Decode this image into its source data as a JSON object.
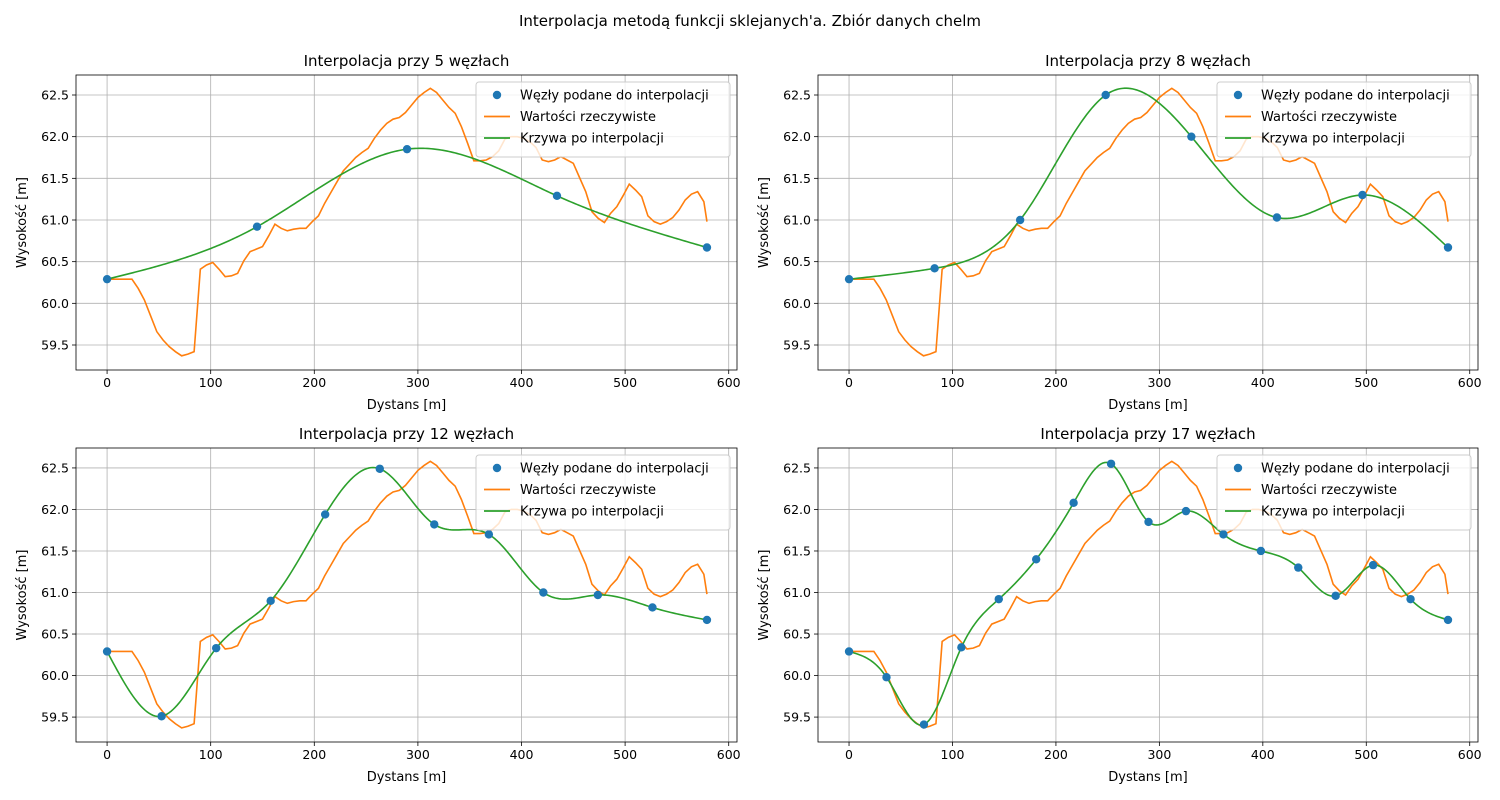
{
  "suptitle": "Interpolacja metodą funkcji sklejanych'a. Zbiór danych chelm",
  "colors": {
    "nodes": "#1f77b4",
    "actual": "#ff7f0e",
    "interp": "#2ca02c",
    "grid": "#b0b0b0"
  },
  "legend": {
    "nodes_label": "Węzły podane do interpolacji",
    "actual_label": "Wartości rzeczywiste",
    "interp_label": "Krzywa po interpolacji",
    "placement": "top-right"
  },
  "actual": {
    "x": [
      0,
      6,
      12,
      18,
      24,
      30,
      36,
      42,
      48,
      54,
      60,
      66,
      72,
      78,
      84,
      90,
      96,
      102,
      108,
      114,
      120,
      126,
      132,
      138,
      144,
      150,
      156,
      162,
      168,
      174,
      180,
      186,
      192,
      198,
      204,
      210,
      216,
      222,
      228,
      234,
      240,
      246,
      252,
      258,
      264,
      270,
      276,
      282,
      288,
      294,
      300,
      306,
      312,
      318,
      324,
      330,
      336,
      342,
      348,
      354,
      360,
      366,
      372,
      378,
      384,
      390,
      396,
      402,
      408,
      414,
      420,
      426,
      432,
      438,
      444,
      450,
      456,
      462,
      468,
      474,
      480,
      486,
      492,
      498,
      504,
      510,
      516,
      522,
      528,
      534,
      540,
      546,
      552,
      558,
      564,
      570,
      576,
      579
    ],
    "y": [
      60.29,
      60.29,
      60.29,
      60.29,
      60.29,
      60.18,
      60.04,
      59.85,
      59.66,
      59.56,
      59.48,
      59.42,
      59.37,
      59.39,
      59.42,
      60.41,
      60.46,
      60.49,
      60.41,
      60.32,
      60.33,
      60.36,
      60.51,
      60.62,
      60.65,
      60.68,
      60.81,
      60.95,
      60.9,
      60.87,
      60.89,
      60.9,
      60.9,
      60.98,
      61.05,
      61.2,
      61.33,
      61.46,
      61.59,
      61.67,
      61.75,
      61.81,
      61.86,
      61.98,
      62.08,
      62.16,
      62.21,
      62.23,
      62.29,
      62.38,
      62.47,
      62.53,
      62.58,
      62.53,
      62.44,
      62.35,
      62.28,
      62.12,
      61.92,
      61.71,
      61.71,
      61.72,
      61.76,
      61.83,
      61.97,
      62.0,
      62.0,
      61.98,
      61.94,
      61.87,
      61.72,
      61.7,
      61.72,
      61.76,
      61.72,
      61.68,
      61.51,
      61.34,
      61.1,
      61.02,
      60.97,
      61.08,
      61.16,
      61.29,
      61.43,
      61.36,
      61.28,
      61.05,
      60.98,
      60.95,
      60.98,
      61.03,
      61.12,
      61.24,
      61.31,
      61.34,
      61.22,
      60.98
    ],
    "note": "approximate read-off"
  },
  "panels": [
    {
      "title": "Interpolacja przy 5 węzłach",
      "xlabel": "Dystans [m]",
      "ylabel": "Wysokość [m]",
      "xlim": [
        -30,
        608
      ],
      "ylim": [
        59.2,
        62.74
      ],
      "xticks": [
        "0",
        "100",
        "200",
        "300",
        "400",
        "500",
        "600"
      ],
      "yticks": [
        "59.5",
        "60.0",
        "60.5",
        "61.0",
        "61.5",
        "62.0",
        "62.5"
      ],
      "nodes": {
        "x": [
          0,
          144.75,
          289.5,
          434.25,
          579
        ],
        "y": [
          60.29,
          60.92,
          61.85,
          61.29,
          60.67
        ]
      }
    },
    {
      "title": "Interpolacja przy 8 węzłach",
      "xlabel": "Dystans [m]",
      "ylabel": "Wysokość [m]",
      "xlim": [
        -30,
        608
      ],
      "ylim": [
        59.2,
        62.74
      ],
      "xticks": [
        "0",
        "100",
        "200",
        "300",
        "400",
        "500",
        "600"
      ],
      "yticks": [
        "59.5",
        "60.0",
        "60.5",
        "61.0",
        "61.5",
        "62.0",
        "62.5"
      ],
      "nodes": {
        "x": [
          0,
          82.7,
          165.4,
          248.1,
          330.9,
          413.6,
          496.3,
          579
        ],
        "y": [
          60.29,
          60.42,
          61.0,
          62.5,
          62.0,
          61.03,
          61.3,
          60.67
        ]
      }
    },
    {
      "title": "Interpolacja przy 12 węzłach",
      "xlabel": "Dystans [m]",
      "ylabel": "Wysokość [m]",
      "xlim": [
        -30,
        608
      ],
      "ylim": [
        59.2,
        62.74
      ],
      "xticks": [
        "0",
        "100",
        "200",
        "300",
        "400",
        "500",
        "600"
      ],
      "yticks": [
        "59.5",
        "60.0",
        "60.5",
        "61.0",
        "61.5",
        "62.0",
        "62.5"
      ],
      "nodes": {
        "x": [
          0,
          52.6,
          105.3,
          157.9,
          210.5,
          263.2,
          315.8,
          368.5,
          421.1,
          473.7,
          526.4,
          579
        ],
        "y": [
          60.29,
          59.51,
          60.33,
          60.9,
          61.94,
          62.49,
          61.82,
          61.7,
          61.0,
          60.97,
          60.82,
          60.67
        ]
      }
    },
    {
      "title": "Interpolacja przy 17 węzłach",
      "xlabel": "Dystans [m]",
      "ylabel": "Wysokość [m]",
      "xlim": [
        -30,
        608
      ],
      "ylim": [
        59.2,
        62.74
      ],
      "xticks": [
        "0",
        "100",
        "200",
        "300",
        "400",
        "500",
        "600"
      ],
      "yticks": [
        "59.5",
        "60.0",
        "60.5",
        "61.0",
        "61.5",
        "62.0",
        "62.5"
      ],
      "nodes": {
        "x": [
          0,
          36.2,
          72.4,
          108.6,
          144.75,
          180.9,
          217.1,
          253.3,
          289.5,
          325.7,
          361.9,
          398.1,
          434.25,
          470.4,
          506.6,
          542.8,
          579
        ],
        "y": [
          60.29,
          59.98,
          59.41,
          60.34,
          60.92,
          61.4,
          62.08,
          62.55,
          61.85,
          61.98,
          61.7,
          61.5,
          61.3,
          60.96,
          61.33,
          60.92,
          60.67
        ]
      }
    }
  ],
  "chart_data": [
    {
      "type": "line",
      "title": "Interpolacja przy 5 węzłach",
      "xlabel": "Dystans [m]",
      "ylabel": "Wysokość [m]",
      "xlim": [
        -30,
        608
      ],
      "ylim": [
        59.2,
        62.74
      ],
      "grid": true,
      "legend_placement": "top-right",
      "series": [
        {
          "name": "Węzły podane do interpolacji",
          "kind": "points"
        },
        {
          "name": "Wartości rzeczywiste",
          "kind": "line"
        },
        {
          "name": "Krzywa po interpolacji",
          "kind": "line"
        }
      ]
    },
    {
      "type": "line",
      "title": "Interpolacja przy 8 węzłach",
      "xlabel": "Dystans [m]",
      "ylabel": "Wysokość [m]",
      "xlim": [
        -30,
        608
      ],
      "ylim": [
        59.2,
        62.74
      ],
      "grid": true,
      "legend_placement": "top-right",
      "series": [
        {
          "name": "Węzły podane do interpolacji",
          "kind": "points"
        },
        {
          "name": "Wartości rzeczywiste",
          "kind": "line"
        },
        {
          "name": "Krzywa po interpolacji",
          "kind": "line"
        }
      ]
    },
    {
      "type": "line",
      "title": "Interpolacja przy 12 węzłach",
      "xlabel": "Dystans [m]",
      "ylabel": "Wysokość [m]",
      "xlim": [
        -30,
        608
      ],
      "ylim": [
        59.2,
        62.74
      ],
      "grid": true,
      "legend_placement": "top-right",
      "series": [
        {
          "name": "Węzły podane do interpolacji",
          "kind": "points"
        },
        {
          "name": "Wartości rzeczywiste",
          "kind": "line"
        },
        {
          "name": "Krzywa po interpolacji",
          "kind": "line"
        }
      ]
    },
    {
      "type": "line",
      "title": "Interpolacja przy 17 węzłach",
      "xlabel": "Dystans [m]",
      "ylabel": "Wysokość [m]",
      "xlim": [
        -30,
        608
      ],
      "ylim": [
        59.2,
        62.74
      ],
      "grid": true,
      "legend_placement": "top-right",
      "series": [
        {
          "name": "Węzły podane do interpolacji",
          "kind": "points"
        },
        {
          "name": "Wartości rzeczywiste",
          "kind": "line"
        },
        {
          "name": "Krzywa po interpolacji",
          "kind": "line"
        }
      ]
    }
  ]
}
